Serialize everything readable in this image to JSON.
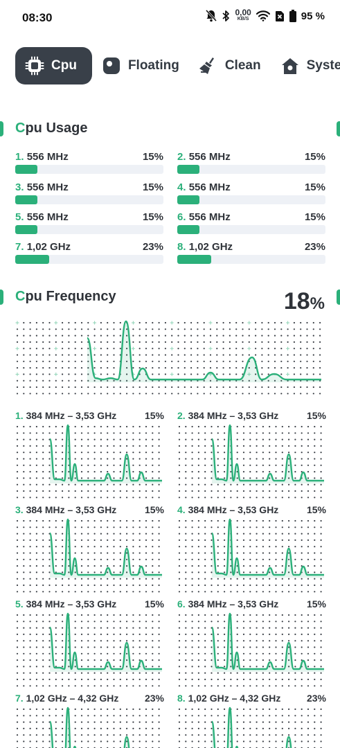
{
  "status": {
    "time": "08:30",
    "net_speed_value": "0,00",
    "net_speed_unit": "KB/S",
    "battery_pct": "95 %"
  },
  "tabs": [
    {
      "label": "Cpu",
      "icon": "cpu-chip-icon",
      "active": true
    },
    {
      "label": "Floating",
      "icon": "floating-window-icon",
      "active": false
    },
    {
      "label": "Clean",
      "icon": "broom-icon",
      "active": false
    },
    {
      "label": "System",
      "icon": "house-icon",
      "active": false
    }
  ],
  "usage_section": {
    "title_accent": "C",
    "title_rest": "pu Usage",
    "cores": [
      {
        "num": "1.",
        "freq": "556 MHz",
        "pct": "15%",
        "level": 15
      },
      {
        "num": "2.",
        "freq": "556 MHz",
        "pct": "15%",
        "level": 15
      },
      {
        "num": "3.",
        "freq": "556 MHz",
        "pct": "15%",
        "level": 15
      },
      {
        "num": "4.",
        "freq": "556 MHz",
        "pct": "15%",
        "level": 15
      },
      {
        "num": "5.",
        "freq": "556 MHz",
        "pct": "15%",
        "level": 15
      },
      {
        "num": "6.",
        "freq": "556 MHz",
        "pct": "15%",
        "level": 15
      },
      {
        "num": "7.",
        "freq": "1,02 GHz",
        "pct": "23%",
        "level": 23
      },
      {
        "num": "8.",
        "freq": "1,02 GHz",
        "pct": "23%",
        "level": 23
      }
    ]
  },
  "frequency_section": {
    "title_accent": "C",
    "title_rest": "pu Frequency",
    "total_value": "18",
    "total_unit": "%",
    "cores": [
      {
        "num": "1.",
        "range": "384 MHz – 3,53 GHz",
        "pct": "15%"
      },
      {
        "num": "2.",
        "range": "384 MHz – 3,53 GHz",
        "pct": "15%"
      },
      {
        "num": "3.",
        "range": "384 MHz – 3,53 GHz",
        "pct": "15%"
      },
      {
        "num": "4.",
        "range": "384 MHz – 3,53 GHz",
        "pct": "15%"
      },
      {
        "num": "5.",
        "range": "384 MHz – 3,53 GHz",
        "pct": "15%"
      },
      {
        "num": "6.",
        "range": "384 MHz – 3,53 GHz",
        "pct": "15%"
      },
      {
        "num": "7.",
        "range": "1,02 GHz – 4,32 GHz",
        "pct": "23%"
      },
      {
        "num": "8.",
        "range": "1,02 GHz – 4,32 GHz",
        "pct": "23%"
      }
    ]
  },
  "colors": {
    "accent": "#2bb07a",
    "tab_active_bg": "#394049",
    "track": "#eef1f6",
    "text": "#2f3339"
  }
}
